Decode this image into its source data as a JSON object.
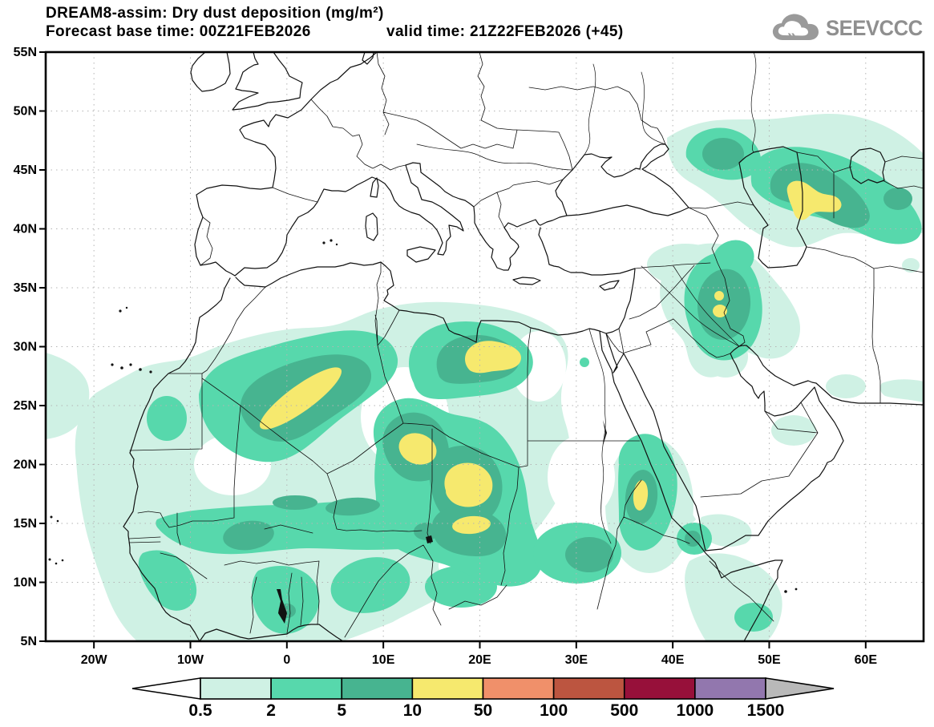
{
  "header": {
    "title": "DREAM8-assim: Dry dust deposition (mg/m²)",
    "forecast_left": "Forecast base time: 00Z21FEB2026",
    "forecast_right": "valid time: 21Z22FEB2026 (+45)"
  },
  "logo": {
    "text": "SEEVCCC",
    "icon": "cloud-with-arrows-icon",
    "color": "#8f8f8f"
  },
  "map": {
    "lat_tick_labels": [
      "55N",
      "50N",
      "45N",
      "40N",
      "35N",
      "30N",
      "25N",
      "20N",
      "15N",
      "10N",
      "5N"
    ],
    "lon_tick_labels": [
      "20W",
      "10W",
      "0",
      "10E",
      "20E",
      "30E",
      "40E",
      "50E",
      "60E"
    ]
  },
  "colorbar": {
    "labels": [
      "0.5",
      "2",
      "5",
      "10",
      "50",
      "100",
      "500",
      "1000",
      "1500"
    ],
    "colors": [
      "#cff1e4",
      "#57d8ac",
      "#47b490",
      "#f6e96e",
      "#f0906a",
      "#bc5540",
      "#97103a",
      "#9277ae"
    ],
    "under_color": "#ffffff",
    "over_color": "#b9b9b9"
  },
  "chart_data": {
    "type": "heatmap",
    "subtype": "filled-contour-geographic-map",
    "title": "DREAM8-assim: Dry dust deposition (mg/m²)",
    "units": "mg/m²",
    "forecast_base_time": "00Z21FEB2026",
    "valid_time": "21Z22FEB2026",
    "forecast_hour": "+45",
    "model": "DREAM8-assim",
    "source_logo": "SEEVCCC",
    "lon_range_deg": [
      -25,
      66
    ],
    "lat_range_deg": [
      5,
      55
    ],
    "lat_ticks_deg": [
      55,
      50,
      45,
      40,
      35,
      30,
      25,
      20,
      15,
      10,
      5
    ],
    "lon_ticks_deg": [
      -20,
      -10,
      0,
      10,
      20,
      30,
      40,
      50,
      60
    ],
    "grid": {
      "style": "dotted",
      "lat_interval_deg": 5,
      "lon_interval_deg": 10
    },
    "contour_levels": [
      0.5,
      2,
      5,
      10,
      50,
      100,
      500,
      1000,
      1500
    ],
    "band_colors": [
      {
        "band": "<0.5",
        "color": "#ffffff"
      },
      {
        "band": "0.5-2",
        "color": "#cff1e4"
      },
      {
        "band": "2-5",
        "color": "#57d8ac"
      },
      {
        "band": "5-10",
        "color": "#47b490"
      },
      {
        "band": "10-50",
        "color": "#f6e96e"
      },
      {
        "band": "50-100",
        "color": "#f0906a"
      },
      {
        "band": "100-500",
        "color": "#bc5540"
      },
      {
        "band": "500-1000",
        "color": "#97103a"
      },
      {
        "band": "1000-1500",
        "color": "#9277ae"
      },
      {
        "band": ">1500",
        "color": "#b9b9b9"
      }
    ],
    "max_band_present": "10-50",
    "regions": [
      {
        "name": "northern Mali / southern Algeria elongated maximum",
        "center_lonlat": [
          1.5,
          21.5
        ],
        "peak_band": "10-50"
      },
      {
        "name": "northwest Libya interior (south of Gulf of Sidra)",
        "center_lonlat": [
          21,
          27
        ],
        "peak_band": "10-50"
      },
      {
        "name": "southeast Libya / Chad border",
        "center_lonlat": [
          18.5,
          21
        ],
        "peak_band": "10-50"
      },
      {
        "name": "central Chad (Bodélé) twin maxima",
        "center_lonlat": [
          23,
          17
        ],
        "peak_band": "10-50"
      },
      {
        "name": "Sudan Red Sea coast / Eritrea",
        "center_lonlat": [
          36.6,
          17
        ],
        "peak_band": "10-50"
      },
      {
        "name": "central Iraq (Mesopotamia) small cores",
        "center_lonlat": [
          44.7,
          32.5
        ],
        "peak_band": "10-50"
      },
      {
        "name": "Turkmenistan/Uzbekistan east of Caspian",
        "center_lonlat": [
          57,
          42.5
        ],
        "peak_band": "10-50"
      },
      {
        "name": "Sahel band near 15N from Senegal to Sudan",
        "peak_band": "5-10"
      },
      {
        "name": "West Sahara / Mauritania coast",
        "peak_band": "5-10"
      },
      {
        "name": "Gulf of Guinea coastal states (Ghana-Nigeria)",
        "peak_band": "2-5"
      },
      {
        "name": "southwest Arabia near Bab el Mandeb",
        "peak_band": "5-10"
      },
      {
        "name": "north Caucasus to north Caspian lowland",
        "peak_band": "2-5"
      },
      {
        "name": "Persian Gulf coasts, southern Iran, Horn of Africa, Levant fringe",
        "peak_band": "0.5-2"
      }
    ]
  }
}
